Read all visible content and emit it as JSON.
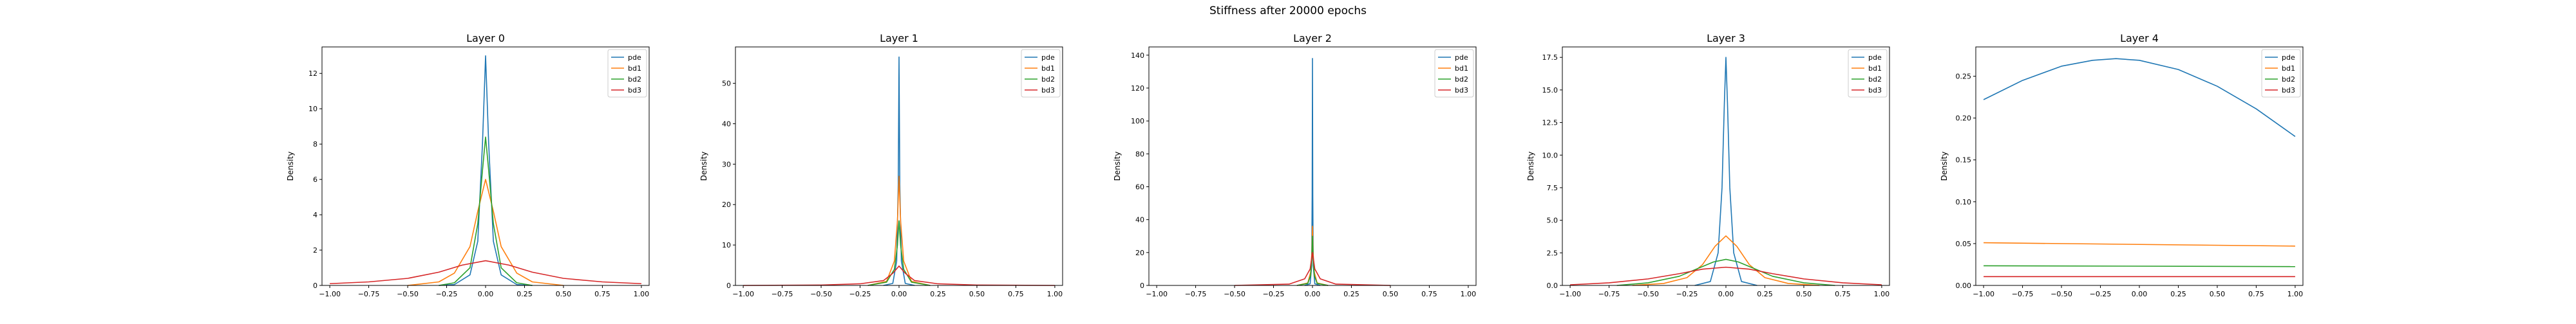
{
  "figure_title": "Stiffness after 20000 epochs",
  "series_colors": {
    "pde": "#1f77b4",
    "bd1": "#ff7f0e",
    "bd2": "#2ca02c",
    "bd3": "#d62728"
  },
  "chart_data": [
    {
      "type": "line",
      "title": "Layer 0",
      "xlabel": "",
      "ylabel": "Density",
      "xlim": [
        -1.05,
        1.05
      ],
      "ylim": [
        0,
        13.5
      ],
      "xticks": [
        -1.0,
        -0.75,
        -0.5,
        -0.25,
        0.0,
        0.25,
        0.5,
        0.75,
        1.0
      ],
      "xtick_labels": [
        "−1.00",
        "−0.75",
        "−0.50",
        "−0.25",
        "0.00",
        "0.25",
        "0.50",
        "0.75",
        "1.00"
      ],
      "yticks": [
        0,
        2,
        4,
        6,
        8,
        10,
        12
      ],
      "ytick_labels": [
        "0",
        "2",
        "4",
        "6",
        "8",
        "10",
        "12"
      ],
      "legend": "upper-right",
      "series": [
        {
          "name": "pde",
          "x": [
            -0.3,
            -0.2,
            -0.1,
            -0.05,
            -0.02,
            0.0,
            0.02,
            0.05,
            0.1,
            0.2,
            0.3
          ],
          "y": [
            0.0,
            0.05,
            0.6,
            2.5,
            8.0,
            13.0,
            8.0,
            2.5,
            0.6,
            0.05,
            0.0
          ]
        },
        {
          "name": "bd1",
          "x": [
            -0.5,
            -0.3,
            -0.2,
            -0.1,
            -0.05,
            0.0,
            0.05,
            0.1,
            0.2,
            0.3,
            0.5
          ],
          "y": [
            0.0,
            0.2,
            0.7,
            2.2,
            4.2,
            6.0,
            4.2,
            2.2,
            0.7,
            0.2,
            0.0
          ]
        },
        {
          "name": "bd2",
          "x": [
            -0.3,
            -0.2,
            -0.1,
            -0.05,
            -0.02,
            0.0,
            0.02,
            0.05,
            0.1,
            0.2,
            0.3
          ],
          "y": [
            0.0,
            0.15,
            1.0,
            3.5,
            6.5,
            8.4,
            6.5,
            3.5,
            1.0,
            0.15,
            0.0
          ]
        },
        {
          "name": "bd3",
          "x": [
            -1.0,
            -0.75,
            -0.5,
            -0.3,
            -0.15,
            0.0,
            0.15,
            0.3,
            0.5,
            0.75,
            1.0
          ],
          "y": [
            0.1,
            0.2,
            0.4,
            0.75,
            1.15,
            1.4,
            1.15,
            0.75,
            0.4,
            0.2,
            0.1
          ]
        }
      ]
    },
    {
      "type": "line",
      "title": "Layer 1",
      "xlabel": "",
      "ylabel": "Density",
      "xlim": [
        -1.05,
        1.05
      ],
      "ylim": [
        0,
        59
      ],
      "xticks": [
        -1.0,
        -0.75,
        -0.5,
        -0.25,
        0.0,
        0.25,
        0.5,
        0.75,
        1.0
      ],
      "xtick_labels": [
        "−1.00",
        "−0.75",
        "−0.50",
        "−0.25",
        "0.00",
        "0.25",
        "0.50",
        "0.75",
        "1.00"
      ],
      "yticks": [
        0,
        10,
        20,
        30,
        40,
        50
      ],
      "ytick_labels": [
        "0",
        "10",
        "20",
        "30",
        "40",
        "50"
      ],
      "legend": "upper-right",
      "series": [
        {
          "name": "pde",
          "x": [
            -0.1,
            -0.04,
            -0.015,
            -0.005,
            0.0,
            0.005,
            0.015,
            0.04,
            0.1
          ],
          "y": [
            0.0,
            0.5,
            6.0,
            25.0,
            56.5,
            25.0,
            6.0,
            0.5,
            0.0
          ]
        },
        {
          "name": "bd1",
          "x": [
            -0.2,
            -0.08,
            -0.03,
            -0.01,
            0.0,
            0.01,
            0.03,
            0.08,
            0.2
          ],
          "y": [
            0.0,
            1.0,
            6.0,
            16.0,
            27.0,
            16.0,
            6.0,
            1.0,
            0.0
          ]
        },
        {
          "name": "bd2",
          "x": [
            -0.2,
            -0.08,
            -0.03,
            -0.01,
            0.0,
            0.01,
            0.03,
            0.08,
            0.2
          ],
          "y": [
            0.0,
            0.8,
            4.0,
            10.0,
            16.0,
            10.0,
            4.0,
            0.8,
            0.0
          ]
        },
        {
          "name": "bd3",
          "x": [
            -1.0,
            -0.5,
            -0.25,
            -0.1,
            -0.04,
            0.0,
            0.04,
            0.1,
            0.25,
            0.5,
            1.0
          ],
          "y": [
            0.0,
            0.1,
            0.4,
            1.2,
            3.0,
            4.8,
            3.0,
            1.2,
            0.4,
            0.1,
            0.0
          ]
        }
      ]
    },
    {
      "type": "line",
      "title": "Layer 2",
      "xlabel": "",
      "ylabel": "Density",
      "xlim": [
        -1.05,
        1.05
      ],
      "ylim": [
        0,
        145
      ],
      "xticks": [
        -1.0,
        -0.75,
        -0.5,
        -0.25,
        0.0,
        0.25,
        0.5,
        0.75,
        1.0
      ],
      "xtick_labels": [
        "−1.00",
        "−0.75",
        "−0.50",
        "−0.25",
        "0.00",
        "0.25",
        "0.50",
        "0.75",
        "1.00"
      ],
      "yticks": [
        0,
        20,
        40,
        60,
        80,
        100,
        120,
        140
      ],
      "ytick_labels": [
        "0",
        "20",
        "40",
        "60",
        "80",
        "100",
        "120",
        "140"
      ],
      "legend": "upper-right",
      "series": [
        {
          "name": "pde",
          "x": [
            -0.05,
            -0.015,
            -0.005,
            -0.002,
            0.0,
            0.002,
            0.005,
            0.015,
            0.05
          ],
          "y": [
            0.0,
            1.0,
            12.0,
            55.0,
            138.0,
            55.0,
            12.0,
            1.0,
            0.0
          ]
        },
        {
          "name": "bd1",
          "x": [
            -0.1,
            -0.03,
            -0.012,
            -0.004,
            0.0,
            0.004,
            0.012,
            0.03,
            0.1
          ],
          "y": [
            0.0,
            1.5,
            8.0,
            20.0,
            36.0,
            20.0,
            8.0,
            1.5,
            0.0
          ]
        },
        {
          "name": "bd2",
          "x": [
            -0.1,
            -0.03,
            -0.012,
            -0.004,
            0.0,
            0.004,
            0.012,
            0.03,
            0.1
          ],
          "y": [
            0.0,
            1.2,
            6.0,
            16.0,
            30.0,
            16.0,
            6.0,
            1.2,
            0.0
          ]
        },
        {
          "name": "bd3",
          "x": [
            -0.5,
            -0.15,
            -0.05,
            -0.015,
            0.0,
            0.015,
            0.05,
            0.15,
            0.5
          ],
          "y": [
            0.0,
            0.8,
            4.0,
            10.0,
            20.0,
            10.0,
            4.0,
            0.8,
            0.0
          ]
        }
      ]
    },
    {
      "type": "line",
      "title": "Layer 3",
      "xlabel": "",
      "ylabel": "Density",
      "xlim": [
        -1.05,
        1.05
      ],
      "ylim": [
        0,
        18.3
      ],
      "xticks": [
        -1.0,
        -0.75,
        -0.5,
        -0.25,
        0.0,
        0.25,
        0.5,
        0.75,
        1.0
      ],
      "xtick_labels": [
        "−1.00",
        "−0.75",
        "−0.50",
        "−0.25",
        "0.00",
        "0.25",
        "0.50",
        "0.75",
        "1.00"
      ],
      "yticks": [
        0,
        2.5,
        5.0,
        7.5,
        10.0,
        12.5,
        15.0,
        17.5
      ],
      "ytick_labels": [
        "0.0",
        "2.5",
        "5.0",
        "7.5",
        "10.0",
        "12.5",
        "15.0",
        "17.5"
      ],
      "legend": "upper-right",
      "series": [
        {
          "name": "pde",
          "x": [
            -0.2,
            -0.1,
            -0.05,
            -0.025,
            -0.01,
            0.0,
            0.01,
            0.025,
            0.05,
            0.1,
            0.2
          ],
          "y": [
            0.0,
            0.3,
            2.5,
            7.5,
            14.0,
            17.5,
            14.0,
            7.5,
            2.5,
            0.3,
            0.0
          ]
        },
        {
          "name": "bd1",
          "x": [
            -0.6,
            -0.4,
            -0.25,
            -0.15,
            -0.07,
            0.0,
            0.07,
            0.15,
            0.25,
            0.4,
            0.6
          ],
          "y": [
            0.0,
            0.15,
            0.6,
            1.6,
            3.0,
            3.8,
            3.0,
            1.6,
            0.6,
            0.15,
            0.0
          ]
        },
        {
          "name": "bd2",
          "x": [
            -0.7,
            -0.5,
            -0.3,
            -0.18,
            -0.08,
            0.0,
            0.08,
            0.18,
            0.3,
            0.5,
            0.7
          ],
          "y": [
            0.0,
            0.2,
            0.7,
            1.3,
            1.8,
            2.0,
            1.8,
            1.3,
            0.7,
            0.2,
            0.0
          ]
        },
        {
          "name": "bd3",
          "x": [
            -1.0,
            -0.75,
            -0.5,
            -0.3,
            -0.15,
            0.0,
            0.15,
            0.3,
            0.5,
            0.75,
            1.0
          ],
          "y": [
            0.05,
            0.2,
            0.5,
            0.9,
            1.25,
            1.4,
            1.25,
            0.9,
            0.5,
            0.2,
            0.05
          ]
        }
      ]
    },
    {
      "type": "line",
      "title": "Layer 4",
      "xlabel": "",
      "ylabel": "Density",
      "xlim": [
        -1.05,
        1.05
      ],
      "ylim": [
        0,
        0.285
      ],
      "xticks": [
        -1.0,
        -0.75,
        -0.5,
        -0.25,
        0.0,
        0.25,
        0.5,
        0.75,
        1.0
      ],
      "xtick_labels": [
        "−1.00",
        "−0.75",
        "−0.50",
        "−0.25",
        "0.00",
        "0.25",
        "0.50",
        "0.75",
        "1.00"
      ],
      "yticks": [
        0,
        0.05,
        0.1,
        0.15,
        0.2,
        0.25
      ],
      "ytick_labels": [
        "0.00",
        "0.05",
        "0.10",
        "0.15",
        "0.20",
        "0.25"
      ],
      "legend": "upper-right",
      "series": [
        {
          "name": "pde",
          "x": [
            -1.0,
            -0.75,
            -0.5,
            -0.3,
            -0.15,
            0.0,
            0.25,
            0.5,
            0.75,
            1.0
          ],
          "y": [
            0.222,
            0.245,
            0.262,
            0.269,
            0.271,
            0.269,
            0.258,
            0.238,
            0.211,
            0.178
          ]
        },
        {
          "name": "bd1",
          "x": [
            -1.0,
            1.0
          ],
          "y": [
            0.051,
            0.047
          ]
        },
        {
          "name": "bd2",
          "x": [
            -1.0,
            1.0
          ],
          "y": [
            0.0235,
            0.0225
          ]
        },
        {
          "name": "bd3",
          "x": [
            -1.0,
            1.0
          ],
          "y": [
            0.0105,
            0.0105
          ]
        }
      ]
    }
  ]
}
